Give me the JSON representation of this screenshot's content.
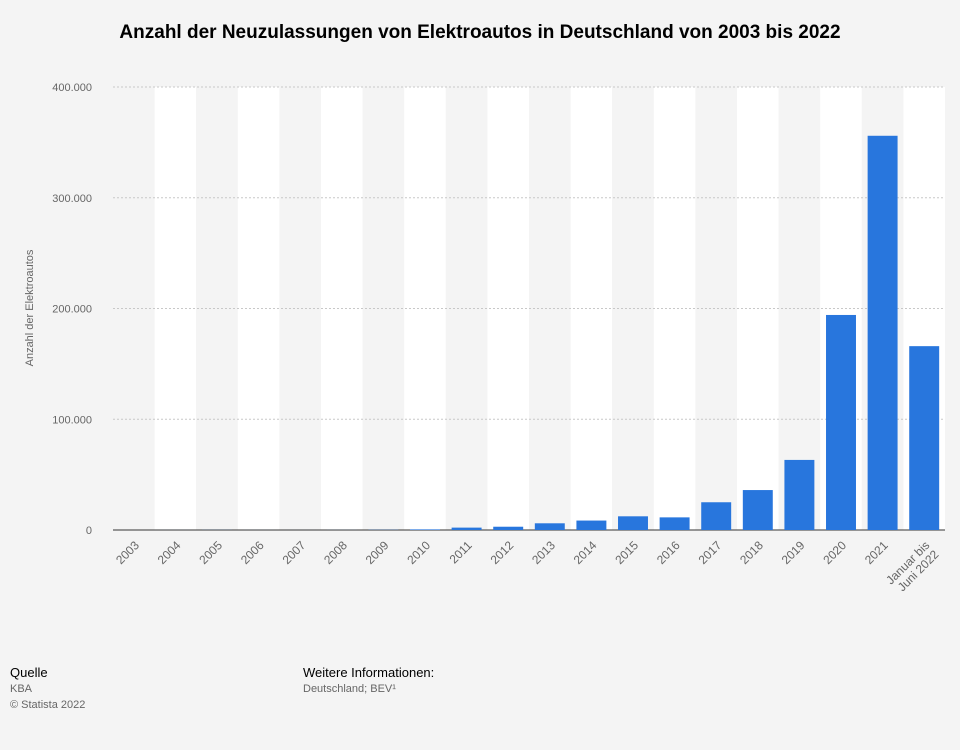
{
  "chart_data": {
    "type": "bar",
    "title": "Anzahl der Neuzulassungen von Elektroautos in Deutschland von 2003 bis 2022",
    "xlabel": "",
    "ylabel": "Anzahl der Elektroautos",
    "categories": [
      "2003",
      "2004",
      "2005",
      "2006",
      "2007",
      "2008",
      "2009",
      "2010",
      "2011",
      "2012",
      "2013",
      "2014",
      "2015",
      "2016",
      "2017",
      "2018",
      "2019",
      "2020",
      "2021",
      "Januar bis Juni 2022"
    ],
    "values": [
      0,
      19,
      61,
      19,
      8,
      36,
      162,
      541,
      2154,
      2956,
      6051,
      8522,
      12363,
      11410,
      25056,
      36062,
      63281,
      194163,
      355961,
      166000
    ],
    "ylim": [
      0,
      400000
    ],
    "yticks": [
      0,
      100000,
      200000,
      300000,
      400000
    ],
    "ytick_labels": [
      "0",
      "100.000",
      "200.000",
      "300.000",
      "400.000"
    ],
    "grid": true,
    "legend": "none",
    "bar_color": "#2876dd"
  },
  "footer": {
    "source_heading": "Quelle",
    "source_name": "KBA",
    "copyright": "© Statista 2022",
    "info_heading": "Weitere Informationen:",
    "info_text": "Deutschland; BEV¹"
  }
}
